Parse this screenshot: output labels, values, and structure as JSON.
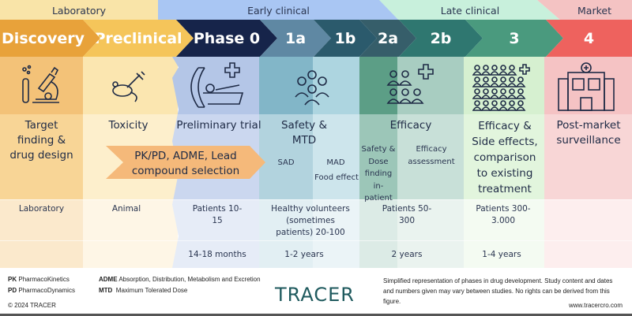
{
  "stages": [
    "Laboratory",
    "Early clinical",
    "Late clinical",
    "Market"
  ],
  "phases": [
    "Discovery",
    "Preclinical",
    "Phase 0",
    "1a",
    "1b",
    "2a",
    "2b",
    "3",
    "4"
  ],
  "icons": [
    "test-tube-microscope-icon",
    "mouse-syringe-icon",
    "mri-scanner-icon",
    "group-people-icon",
    "people-cross-icon",
    "crowd-cross-icon",
    "hospital-icon"
  ],
  "goals": {
    "discovery": "Target finding & drug design",
    "preclinical": "Toxicity",
    "pkpd": "PK/PD, ADME, Lead compound selection",
    "phase0": "Preliminary trial",
    "phase1": "Safety & MTD",
    "sad": "SAD",
    "mad": "MAD",
    "food": "Food effect",
    "phase2": "Efficacy",
    "p2a": "Safety & Dose finding in-patient",
    "p2b": "Efficacy assessment",
    "phase3": "Efficacy & Side effects, comparison to existing treatment",
    "phase4": "Post-market surveillance"
  },
  "subjects": {
    "discovery": "Laboratory",
    "preclinical": "Animal",
    "phase0": "Patients 10-15",
    "phase1": "Healthy volunteers (sometimes patients) 20-100",
    "phase2": "Patients 50-300",
    "phase3": "Patients 300-3.000"
  },
  "durations": {
    "phase0": "14-18 months",
    "phase1": "1-2 years",
    "phase2": "2 years",
    "phase3": "1-4 years"
  },
  "footer": {
    "pk": "PK",
    "pk_def": "PharmacoKinetics",
    "pd": "PD",
    "pd_def": "PharmacoDynamics",
    "adme": "ADME",
    "adme_def": "Absorption, Distribution, Metabolism and Excretion",
    "mtd": "MTD",
    "mtd_def": "Maximum Tolerated Dose",
    "copyright": "© 2024 TRACER",
    "logo": "TRACER",
    "disclaimer": "Simplified representation of phases in drug development. Study content and dates and numbers given may vary between studies. No rights can be derived from this figure.",
    "url": "www.tracercro.com"
  },
  "colors": {
    "discovery": "#e8a23a",
    "preclinical": "#f5c55a",
    "phase0": "#16244a",
    "p1a": "#5f88a3",
    "p1b": "#2b5a6c",
    "p2a": "#365e6a",
    "p2b": "#2f7770",
    "p3": "#4a9a7e",
    "p4": "#ee625e"
  }
}
